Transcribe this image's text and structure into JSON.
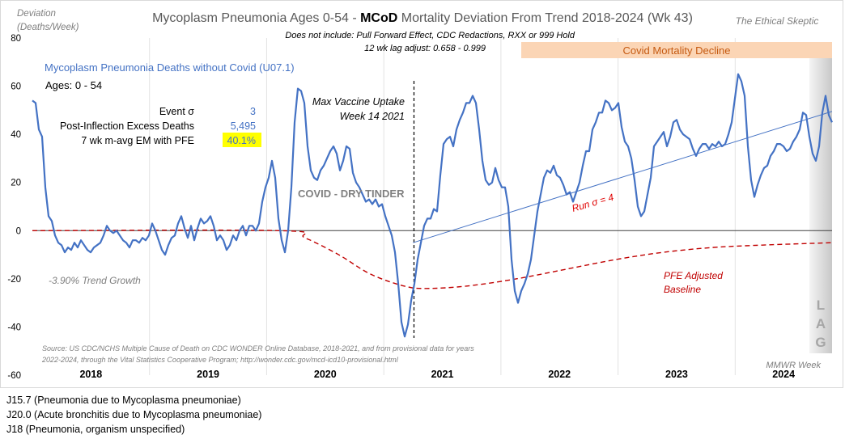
{
  "chart_data": {
    "type": "line",
    "title_pre": "Mycoplasm Pneumonia Ages 0-54 - ",
    "title_bold": "MCoD",
    "title_post": " Mortality Deviation From Trend  2018-2024 (Wk 43)",
    "subtitle_1": "Does not include: Pull Forward Effect,  CDC Redactions, RXX or 999 Hold",
    "subtitle_2": "12 wk lag adjust: 0.658 - 0.999",
    "brand": "The Ethical Skeptic",
    "ylabel_1": "Deviation",
    "ylabel_2": "(Deaths/Week)",
    "xlabel": "MMWR Week",
    "ylim": [
      -60,
      80
    ],
    "yticks": [
      "80",
      "60",
      "40",
      "20",
      "0",
      "-20",
      "-40",
      "-60"
    ],
    "ytick_values": [
      80,
      60,
      40,
      20,
      0,
      -20,
      -40,
      -60
    ],
    "x_range_weeks": [
      0,
      355
    ],
    "weeks_per_year": 52,
    "year_labels": [
      "2018",
      "2019",
      "2020",
      "2021",
      "2022",
      "2023",
      "2024"
    ],
    "series": [
      {
        "name": "Mycoplasm Pneumonia Deaths without Covid (U07.1)",
        "color": "#4472C4",
        "values": [
          54,
          53,
          42,
          39,
          18,
          6,
          4,
          -2,
          -5,
          -6,
          -9,
          -7,
          -8,
          -5,
          -7,
          -4,
          -6,
          -8,
          -9,
          -7,
          -6,
          -5,
          -2,
          2,
          0,
          -1,
          0,
          -2,
          -4,
          -5,
          -7,
          -4,
          -4,
          -5,
          -3,
          -4,
          -2,
          3,
          0,
          -4,
          -8,
          -10,
          -6,
          -3,
          -2,
          3,
          6,
          1,
          -3,
          2,
          -4,
          1,
          5,
          3,
          4,
          6,
          2,
          -4,
          -2,
          -4,
          -8,
          -6,
          -2,
          -4,
          0,
          2,
          -2,
          2,
          2,
          0,
          3,
          12,
          18,
          22,
          29,
          22,
          5,
          -4,
          -9,
          0,
          18,
          45,
          59,
          58,
          53,
          35,
          25,
          22,
          21,
          25,
          27,
          30,
          33,
          35,
          32,
          25,
          29,
          35,
          34,
          24,
          20,
          18,
          15,
          12,
          13,
          11,
          13,
          10,
          11,
          6,
          2,
          -2,
          -9,
          -22,
          -38,
          -44,
          -39,
          -29,
          -22,
          -12,
          -5,
          2,
          5,
          5,
          9,
          8,
          23,
          36,
          38,
          39,
          35,
          42,
          46,
          49,
          53,
          53,
          56,
          53,
          42,
          29,
          21,
          19,
          20,
          26,
          21,
          18,
          18,
          10,
          -12,
          -25,
          -30,
          -25,
          -22,
          -18,
          -12,
          -2,
          8,
          15,
          22,
          25,
          24,
          27,
          23,
          22,
          19,
          15,
          16,
          12,
          16,
          20,
          27,
          33,
          33,
          42,
          45,
          49,
          49,
          54,
          53,
          50,
          51,
          53,
          43,
          37,
          35,
          30,
          21,
          10,
          6,
          8,
          15,
          22,
          35,
          37,
          39,
          41,
          35,
          39,
          45,
          46,
          42,
          40,
          39,
          38,
          34,
          31,
          34,
          36,
          36,
          34,
          36,
          35,
          37,
          35,
          36,
          40,
          45,
          55,
          65,
          62,
          56,
          35,
          21,
          14,
          19,
          23,
          26,
          27,
          31,
          33,
          36,
          36,
          35,
          33,
          34,
          37,
          39,
          42,
          49,
          48,
          39,
          32,
          29,
          35,
          49,
          56,
          48,
          45
        ]
      },
      {
        "name": "PFE Adjusted Baseline",
        "color": "#C00000",
        "points": [
          [
            0,
            0
          ],
          [
            110,
            0
          ],
          [
            121,
            -3
          ],
          [
            136,
            -10
          ],
          [
            150,
            -18
          ],
          [
            165,
            -23
          ],
          [
            175,
            -24
          ],
          [
            193,
            -23
          ],
          [
            215,
            -20
          ],
          [
            237,
            -16
          ],
          [
            259,
            -12
          ],
          [
            280,
            -9
          ],
          [
            302,
            -7
          ],
          [
            324,
            -6
          ],
          [
            355,
            -5
          ]
        ]
      },
      {
        "name": "Run σ = 4 trend",
        "color": "#4472C4",
        "points": [
          [
            169,
            -5
          ],
          [
            355,
            49.5
          ]
        ]
      }
    ],
    "vaccine_marker_week": 169.4,
    "annotations": {
      "ages": "Ages: 0 - 54",
      "event_sigma_label": "Event σ",
      "event_sigma_value": "3",
      "excess_label": "Post-Inflection Excess Deaths",
      "excess_value": "5,495",
      "em_label": "7 wk m-avg EM with PFE",
      "em_value": "40.1%",
      "vaccine_1": "Max Vaccine Uptake",
      "vaccine_2": "Week 14 2021",
      "dry_tinder": "COVID - DRY TINDER",
      "run_sigma": "Run σ = 4",
      "pfe_1": "PFE Adjusted",
      "pfe_2": "Baseline",
      "trend_growth": "-3.90% Trend Growth",
      "covid_decline": "Covid Mortality Decline",
      "lag_letters": [
        "L",
        "A",
        "G"
      ],
      "source_1": "Source: US CDC/NCHS Multiple Cause of Death on CDC WONDER Online Database, 2018-2021, and from provisional data for years",
      "source_2": "2022-2024, through the Vital Statistics Cooperative Program; http://wonder.cdc.gov/mcd-icd10-provisional.html"
    }
  },
  "notes": [
    "J15.7 (Pneumonia  due to Mycoplasma pneumoniae)",
    "J20.0 (Acute bronchitis due to Mycoplasma pneumoniae)",
    "J18 (Pneumonia, organism unspecified)"
  ]
}
